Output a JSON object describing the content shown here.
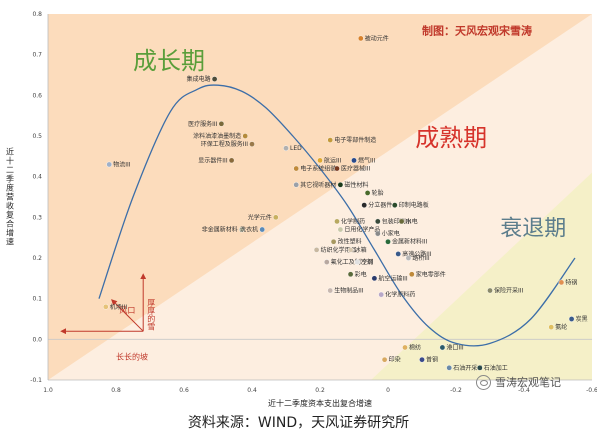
{
  "chart_data": {
    "type": "scatter",
    "title": "",
    "credit": "制图：天风宏观宋雪涛",
    "xlabel": "近十二季度资本支出复合增速",
    "ylabel": "近十二季度营收复合增速",
    "xlim": [
      1.0,
      -0.6
    ],
    "ylim": [
      -0.1,
      0.8
    ],
    "x_ticks": [
      1.0,
      0.8,
      0.6,
      0.4,
      0.2,
      0.0,
      -0.2,
      -0.4,
      -0.6
    ],
    "x_tick_labels": [
      "1.0",
      "0.8",
      "0.6",
      "0.4",
      "0.2",
      "0",
      "-0.2",
      "-0.4",
      "-0.6"
    ],
    "y_ticks": [
      -0.1,
      0.0,
      0.1,
      0.2,
      0.3,
      0.4,
      0.5,
      0.6,
      0.7,
      0.8
    ],
    "y_tick_labels": [
      "-0.1",
      "0.0",
      "0.1",
      "0.2",
      "0.3",
      "0.4",
      "0.5",
      "0.6",
      "0.7",
      "0.8"
    ],
    "regions": [
      {
        "name": "成长期",
        "color": "#5a9e3a"
      },
      {
        "name": "成熟期",
        "color": "#d6332b"
      },
      {
        "name": "衰退期",
        "color": "#5c7d8c"
      }
    ],
    "annotations": [
      "风口",
      "厚厚的雪",
      "长长的坡"
    ],
    "points": [
      {
        "name": "被动元件",
        "x": 0.08,
        "y": 0.74,
        "color": "#d9822b"
      },
      {
        "name": "集成电路",
        "x": 0.51,
        "y": 0.64,
        "color": "#4d4d3a"
      },
      {
        "name": "医疗服务III",
        "x": 0.49,
        "y": 0.53,
        "color": "#7a6a3a"
      },
      {
        "name": "涂料油漆油墨制造",
        "x": 0.42,
        "y": 0.5,
        "color": "#b48a3a"
      },
      {
        "name": "环保工程及服务III",
        "x": 0.4,
        "y": 0.48,
        "color": "#9a7a4a"
      },
      {
        "name": "LED",
        "x": 0.3,
        "y": 0.47,
        "color": "#b0b0b0"
      },
      {
        "name": "电子零部件制造",
        "x": 0.17,
        "y": 0.49,
        "color": "#c49a3a"
      },
      {
        "name": "显示器件III",
        "x": 0.46,
        "y": 0.44,
        "color": "#8a6a3a"
      },
      {
        "name": "航运III",
        "x": 0.2,
        "y": 0.44,
        "color": "#e0a830"
      },
      {
        "name": "燃气III",
        "x": 0.1,
        "y": 0.44,
        "color": "#2a4a8a"
      },
      {
        "name": "物流III",
        "x": 0.82,
        "y": 0.43,
        "color": "#9fb0c8"
      },
      {
        "name": "电子系统组装",
        "x": 0.27,
        "y": 0.42,
        "color": "#c08a3a"
      },
      {
        "name": "医疗器械III",
        "x": 0.15,
        "y": 0.42,
        "color": "#7a3a20"
      },
      {
        "name": "磁性材料",
        "x": 0.14,
        "y": 0.38,
        "color": "#1a3a1a"
      },
      {
        "name": "其它视听器材",
        "x": 0.27,
        "y": 0.38,
        "color": "#9aa0a8"
      },
      {
        "name": "轮胎",
        "x": 0.06,
        "y": 0.36,
        "color": "#4a6a2a"
      },
      {
        "name": "分立器件",
        "x": 0.07,
        "y": 0.33,
        "color": "#2a2a2a"
      },
      {
        "name": "印制电路板",
        "x": -0.02,
        "y": 0.33,
        "color": "#2a4a2a"
      },
      {
        "name": "光学元件",
        "x": 0.33,
        "y": 0.3,
        "color": "#c8b060"
      },
      {
        "name": "化学制药",
        "x": 0.15,
        "y": 0.29,
        "color": "#b8a860"
      },
      {
        "name": "包装印刷III",
        "x": 0.03,
        "y": 0.29,
        "color": "#3a4a3a"
      },
      {
        "name": "水电",
        "x": -0.04,
        "y": 0.29,
        "color": "#6a6a3a"
      },
      {
        "name": "非金属新材料",
        "x": 0.43,
        "y": 0.27,
        "color": "#b8b8a0"
      },
      {
        "name": "洗衣机",
        "x": 0.37,
        "y": 0.27,
        "color": "#5a8ab8"
      },
      {
        "name": "日用化学产品",
        "x": 0.14,
        "y": 0.27,
        "color": "#c8c8a8"
      },
      {
        "name": "小家电",
        "x": 0.03,
        "y": 0.26,
        "color": "#8a8a8a"
      },
      {
        "name": "改性塑料",
        "x": 0.16,
        "y": 0.24,
        "color": "#a89860"
      },
      {
        "name": "金属新材料III",
        "x": 0.0,
        "y": 0.24,
        "color": "#2a6a3a"
      },
      {
        "name": "纺织化学用品",
        "x": 0.21,
        "y": 0.22,
        "color": "#c8b8a0"
      },
      {
        "name": "冰箱",
        "x": 0.11,
        "y": 0.22,
        "color": "#d8c8b0"
      },
      {
        "name": "高速公路III",
        "x": -0.03,
        "y": 0.21,
        "color": "#3a5a8a"
      },
      {
        "name": "氟化工及制冷剂",
        "x": 0.18,
        "y": 0.19,
        "color": "#b8a8a0"
      },
      {
        "name": "空调",
        "x": 0.09,
        "y": 0.19,
        "color": "#e0e0e0"
      },
      {
        "name": "路桥III",
        "x": -0.06,
        "y": 0.2,
        "color": "#b8b8b8"
      },
      {
        "name": "家电零部件",
        "x": -0.07,
        "y": 0.16,
        "color": "#c08a3a"
      },
      {
        "name": "彩电",
        "x": 0.11,
        "y": 0.16,
        "color": "#5a6a3a"
      },
      {
        "name": "航空运输III",
        "x": 0.04,
        "y": 0.15,
        "color": "#2a3a6a"
      },
      {
        "name": "保险开采III",
        "x": -0.3,
        "y": 0.12,
        "color": "#8a8a6a"
      },
      {
        "name": "生物制品III",
        "x": 0.17,
        "y": 0.12,
        "color": "#c8b8b0"
      },
      {
        "name": "化学原料药",
        "x": 0.02,
        "y": 0.11,
        "color": "#b8a8c8"
      },
      {
        "name": "机场III",
        "x": 0.83,
        "y": 0.08,
        "color": "#e6c278"
      },
      {
        "name": "特钢",
        "x": -0.51,
        "y": 0.14,
        "color": "#e09050"
      },
      {
        "name": "炭黑",
        "x": -0.54,
        "y": 0.05,
        "color": "#3a5a8a"
      },
      {
        "name": "氨纶",
        "x": -0.48,
        "y": 0.03,
        "color": "#e0c060"
      },
      {
        "name": "棉纺",
        "x": -0.05,
        "y": -0.02,
        "color": "#e0b060"
      },
      {
        "name": "港口III",
        "x": -0.16,
        "y": -0.02,
        "color": "#2a5a6a"
      },
      {
        "name": "印染",
        "x": 0.01,
        "y": -0.05,
        "color": "#d8a860"
      },
      {
        "name": "普钢",
        "x": -0.1,
        "y": -0.05,
        "color": "#3a4a8a"
      },
      {
        "name": "石油开采III",
        "x": -0.18,
        "y": -0.07,
        "color": "#6a8aa8"
      },
      {
        "name": "石油加工",
        "x": -0.27,
        "y": -0.07,
        "color": "#2a4a4a"
      }
    ],
    "trend_line": {
      "x": [
        0.85,
        0.75,
        0.64,
        0.56,
        0.5,
        0.43,
        0.36,
        0.28,
        0.2,
        0.12,
        0.04,
        -0.04,
        -0.12,
        -0.2,
        -0.3,
        -0.42,
        -0.55
      ],
      "y": [
        0.1,
        0.35,
        0.56,
        0.615,
        0.625,
        0.61,
        0.57,
        0.5,
        0.42,
        0.33,
        0.22,
        0.11,
        0.03,
        -0.01,
        -0.01,
        0.05,
        0.2
      ]
    }
  },
  "footer": {
    "source": "资料来源：WIND，天风证券研究所"
  },
  "watermark": {
    "text": "雪涛宏观笔记"
  }
}
